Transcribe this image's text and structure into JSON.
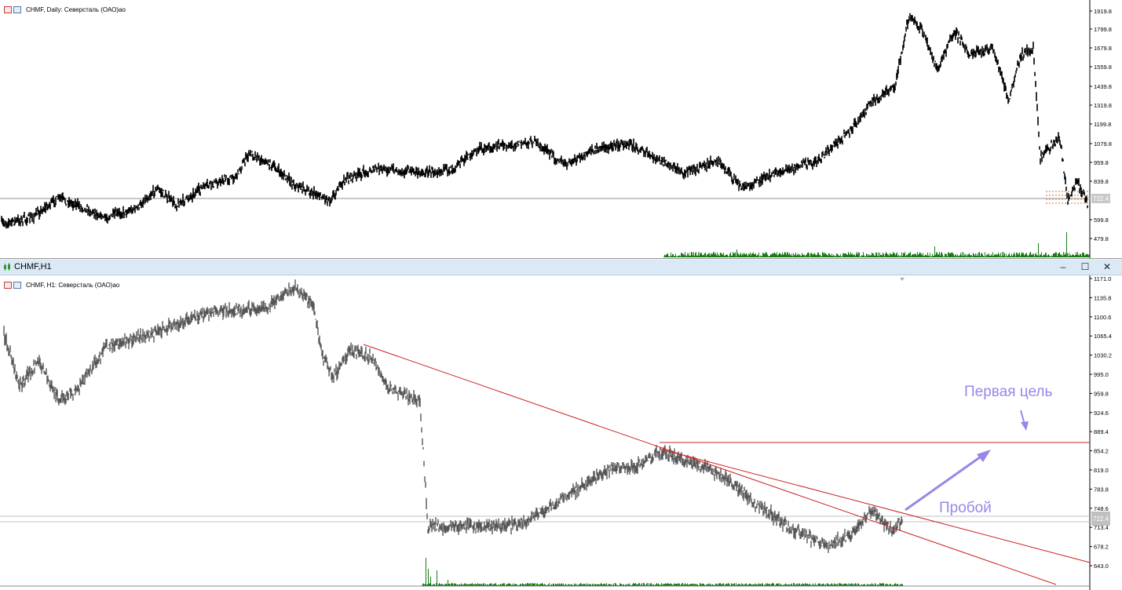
{
  "top_chart": {
    "label": "CHMF, Daily:  Северсталь (ОАО)ао",
    "price_axis": [
      "1919.8",
      "1799.8",
      "1679.8",
      "1559.8",
      "1439.8",
      "1319.8",
      "1199.8",
      "1079.8",
      "959.8",
      "839.8",
      "599.8",
      "479.8"
    ],
    "current_price": "722.4",
    "colors": {
      "candles": "#000000",
      "volume": "#1a7a1a",
      "hline": "#c8c8c8",
      "levels": "#d07030"
    }
  },
  "bottom_window": {
    "title": "CHMF,H1",
    "controls": {
      "minimize": "–",
      "maximize": "☐",
      "close": "✕"
    }
  },
  "bottom_chart": {
    "label": "CHMF, H1:  Северсталь (ОАО)ао",
    "price_axis": [
      "1171.0",
      "1135.8",
      "1100.6",
      "1065.4",
      "1030.2",
      "995.0",
      "959.8",
      "924.6",
      "889.4",
      "854.2",
      "819.0",
      "783.8",
      "748.6",
      "713.4",
      "678.2",
      "643.0"
    ],
    "current_price": "722.4",
    "colors": {
      "candles": "#555555",
      "trendline": "#cc2222",
      "annotation": "#9b86e8",
      "volume": "#1a7a1a"
    }
  },
  "annotations": {
    "target": "Первая цель",
    "breakout": "Пробой"
  },
  "icons": [
    "chart-icon",
    "chart-type-icon",
    "window-icon",
    "minimize-icon",
    "maximize-icon",
    "close-icon",
    "arrow-icon"
  ]
}
